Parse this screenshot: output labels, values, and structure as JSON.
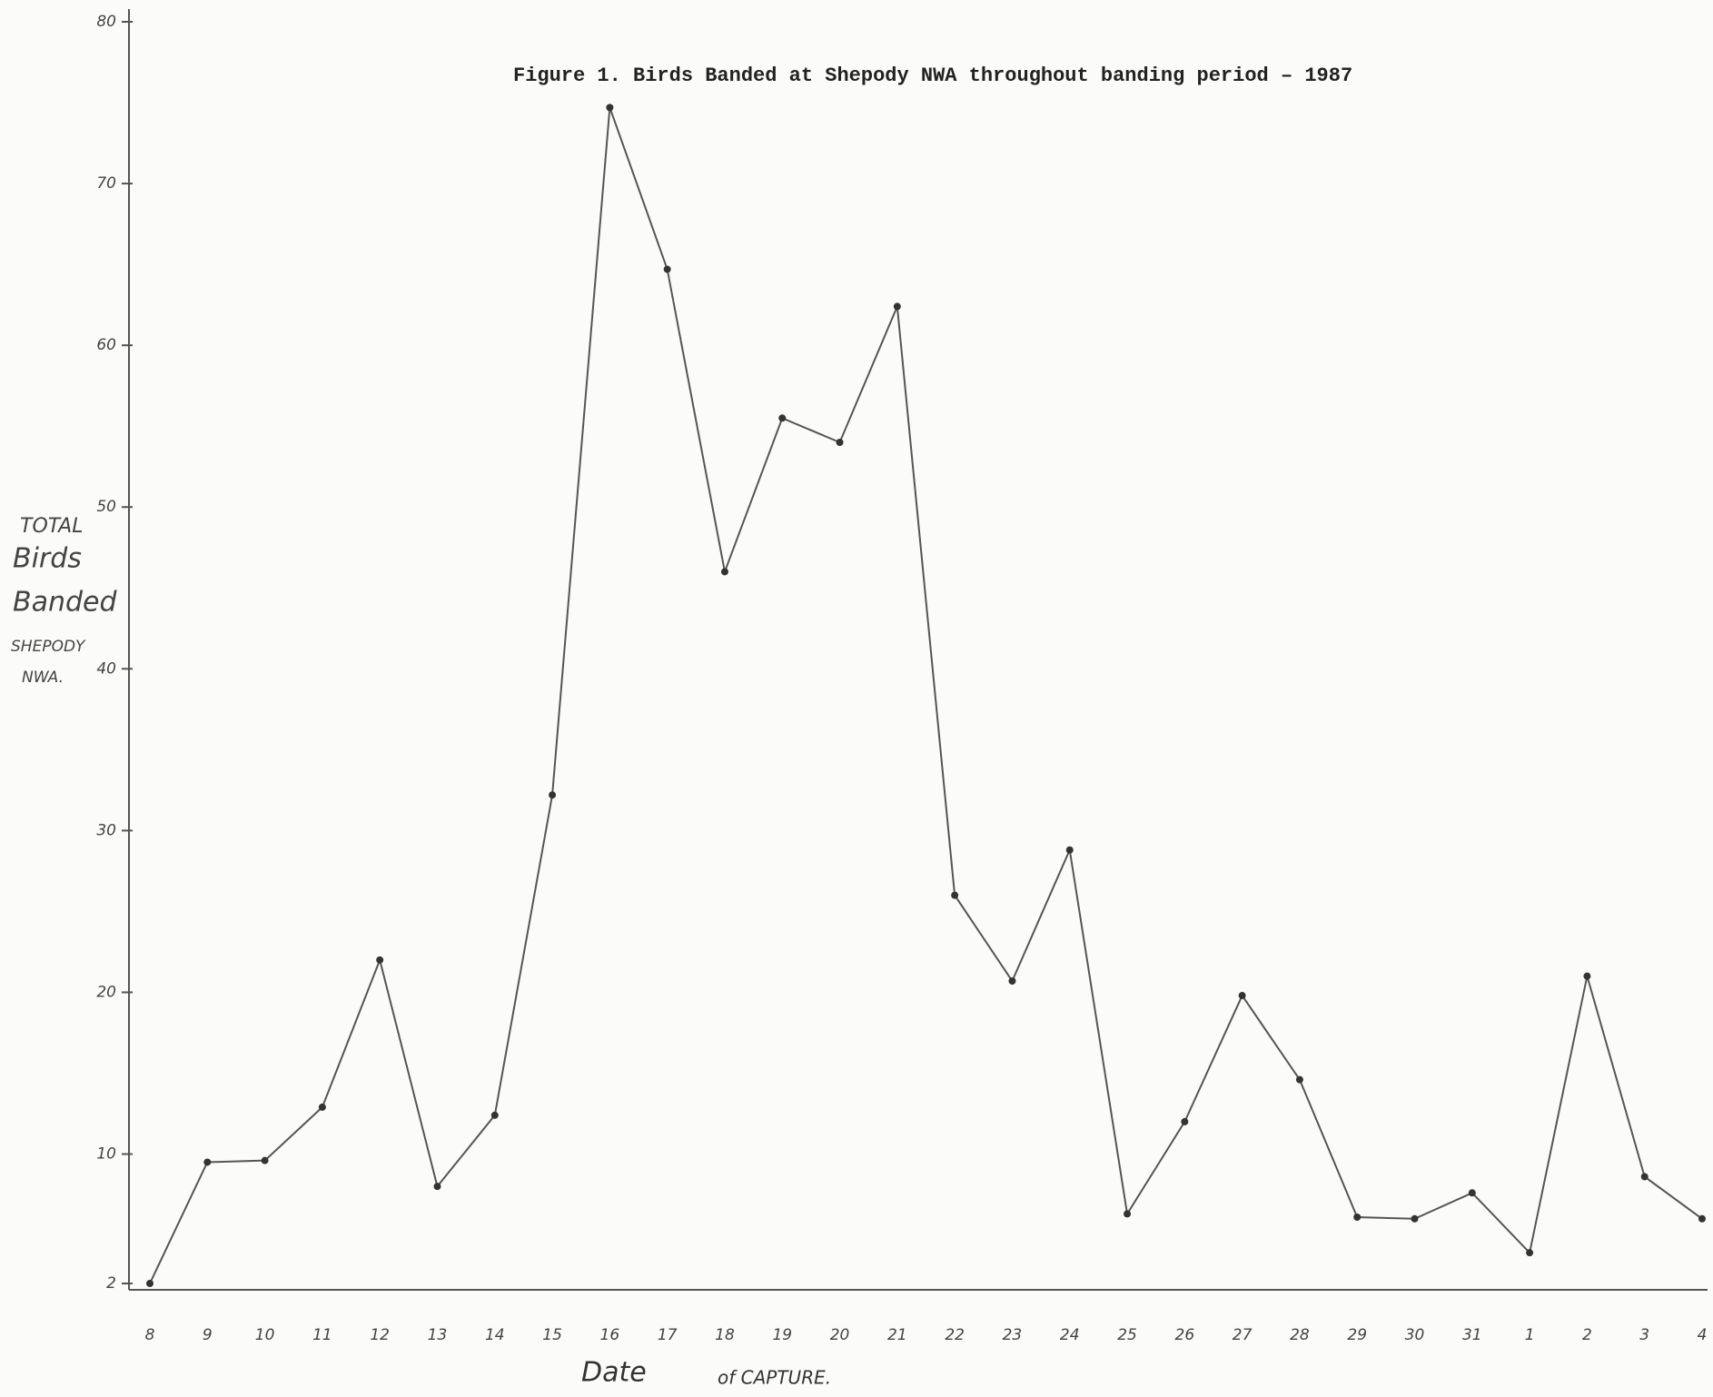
{
  "chart_data": {
    "type": "line",
    "title": "Figure 1.  Birds Banded at Shepody NWA throughout banding period – 1987",
    "ylabel": [
      "TOTAL",
      "Birds",
      "Banded",
      "SHEPODY",
      "NWA."
    ],
    "xlabel": [
      "Date",
      "of CAPTURE."
    ],
    "categories": [
      "8",
      "9",
      "10",
      "11",
      "12",
      "13",
      "14",
      "15",
      "16",
      "17",
      "18",
      "19",
      "20",
      "21",
      "22",
      "23",
      "24",
      "25",
      "26",
      "27",
      "28",
      "29",
      "30",
      "31",
      "1",
      "2",
      "3",
      "4"
    ],
    "values": [
      2,
      9.5,
      9.6,
      12.9,
      22,
      8,
      12.4,
      32.2,
      74.7,
      64.7,
      46,
      55.5,
      54,
      62.4,
      26,
      20.7,
      28.8,
      6.3,
      12,
      19.8,
      14.6,
      6.1,
      6,
      7.6,
      3.9,
      21,
      8.6,
      6
    ],
    "color": "#555555",
    "ylim": [
      2,
      80
    ],
    "yticks": [
      2,
      10,
      20,
      30,
      40,
      50,
      60,
      70,
      80
    ]
  }
}
